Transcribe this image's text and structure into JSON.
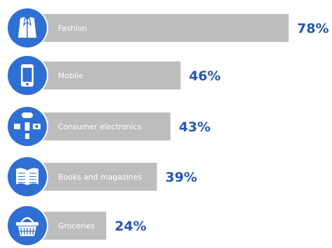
{
  "chart_data": {
    "type": "bar",
    "orientation": "horizontal",
    "categories": [
      "Fashion",
      "Mobile",
      "Consumer electronics",
      "Books and magazines",
      "Groceries"
    ],
    "values": [
      78,
      46,
      43,
      39,
      24
    ],
    "value_labels": [
      "78%",
      "46%",
      "43%",
      "39%",
      "24%"
    ],
    "icons": [
      "jacket-icon",
      "mobile-phone-icon",
      "electronics-icon",
      "book-icon",
      "shopping-basket-icon"
    ],
    "unit": "%",
    "xlim": [
      0,
      78
    ],
    "grid": false,
    "colors": {
      "bar": "#bdbdbd",
      "icon_circle": "#2f6fd3",
      "value_text": "#2557b3",
      "label_text": "#ffffff"
    }
  }
}
